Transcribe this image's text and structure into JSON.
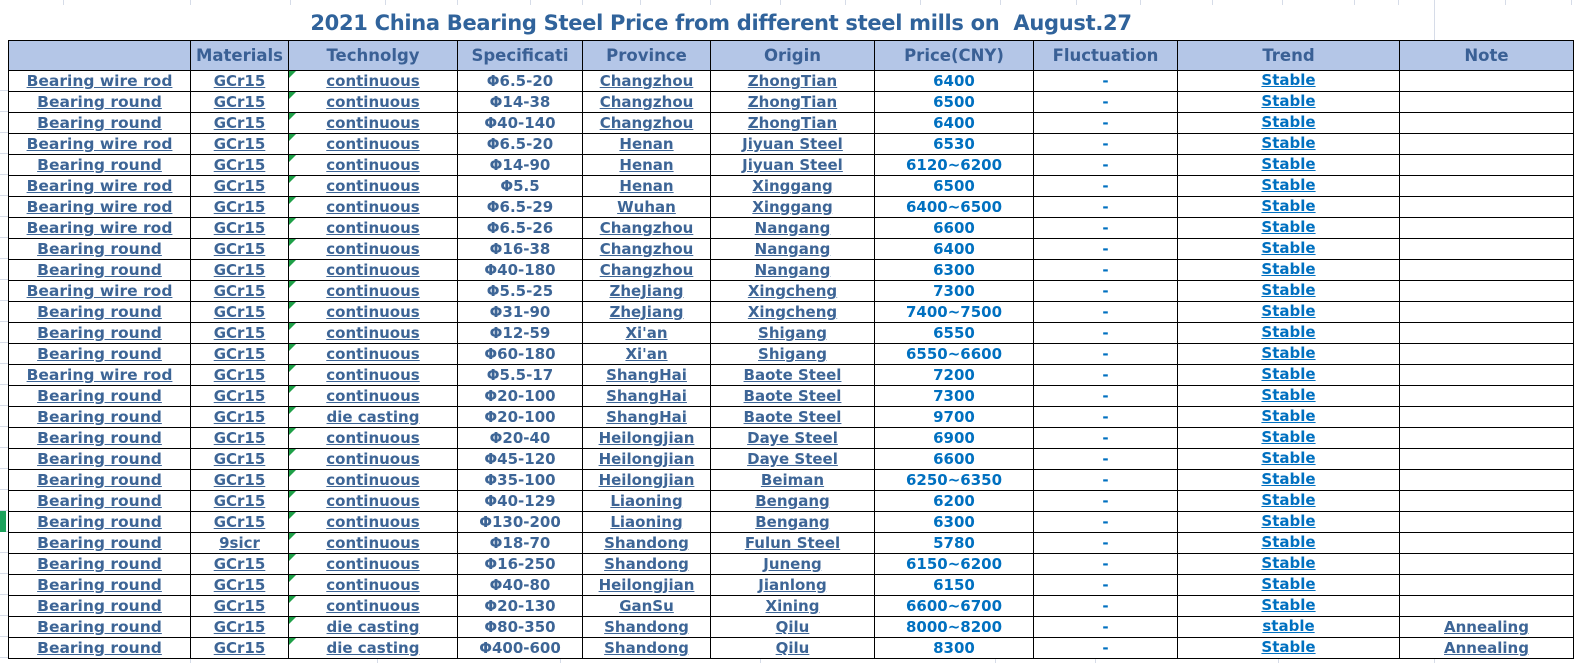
{
  "title": "2021 China Bearing Steel Price from different steel mills on  August.27",
  "colors": {
    "header_fill": "#b4c6e7",
    "header_text": "#3a6095",
    "body_steel_text": "#3d6596",
    "body_bright_blue": "#0070c0",
    "error_indicator_green": "#1fa048",
    "selection_marker_green": "#1da35c"
  },
  "table": {
    "columns": [
      {
        "key": "product",
        "label": ""
      },
      {
        "key": "materials",
        "label": "Materials"
      },
      {
        "key": "technology",
        "label": "Technolgy"
      },
      {
        "key": "specification",
        "label": "Specificati"
      },
      {
        "key": "province",
        "label": "Province"
      },
      {
        "key": "origin",
        "label": "Origin"
      },
      {
        "key": "price",
        "label": "Price(CNY)"
      },
      {
        "key": "fluctuation",
        "label": "Fluctuation"
      },
      {
        "key": "trend",
        "label": "Trend"
      },
      {
        "key": "note",
        "label": "Note"
      }
    ],
    "rows": [
      {
        "product": "Bearing wire rod",
        "materials": "GCr15",
        "technology": "continuous",
        "specification": "Φ6.5-20",
        "province": "Changzhou",
        "origin": "ZhongTian",
        "price": "6400",
        "fluctuation": "-",
        "trend": "Stable",
        "note": ""
      },
      {
        "product": "Bearing round",
        "materials": "GCr15",
        "technology": "continuous",
        "specification": "Φ14-38",
        "province": "Changzhou",
        "origin": "ZhongTian",
        "price": "6500",
        "fluctuation": "-",
        "trend": "Stable",
        "note": ""
      },
      {
        "product": "Bearing round",
        "materials": "GCr15",
        "technology": "continuous",
        "specification": "Φ40-140",
        "province": "Changzhou",
        "origin": "ZhongTian",
        "price": "6400",
        "fluctuation": "-",
        "trend": "Stable",
        "note": ""
      },
      {
        "product": "Bearing wire rod",
        "materials": "GCr15",
        "technology": "continuous",
        "specification": "Φ6.5-20",
        "province": "Henan",
        "origin": "Jiyuan Steel",
        "price": "6530",
        "fluctuation": "-",
        "trend": "Stable",
        "note": ""
      },
      {
        "product": "Bearing round",
        "materials": "GCr15",
        "technology": "continuous",
        "specification": "Φ14-90",
        "province": "Henan",
        "origin": "Jiyuan Steel",
        "price": "6120~6200",
        "fluctuation": "-",
        "trend": "Stable",
        "note": ""
      },
      {
        "product": "Bearing wire rod",
        "materials": "GCr15",
        "technology": "continuous",
        "specification": "Φ5.5",
        "province": "Henan",
        "origin": "Xinggang",
        "price": "6500",
        "fluctuation": "-",
        "trend": "Stable",
        "note": ""
      },
      {
        "product": "Bearing wire rod",
        "materials": "GCr15",
        "technology": "continuous",
        "specification": "Φ6.5-29",
        "province": "Wuhan",
        "origin": "Xinggang",
        "price": "6400~6500",
        "fluctuation": "-",
        "trend": "Stable",
        "note": ""
      },
      {
        "product": "Bearing wire rod",
        "materials": "GCr15",
        "technology": "continuous",
        "specification": "Φ6.5-26",
        "province": "Changzhou",
        "origin": "Nangang",
        "price": "6600",
        "fluctuation": "-",
        "trend": "Stable",
        "note": ""
      },
      {
        "product": "Bearing round",
        "materials": "GCr15",
        "technology": "continuous",
        "specification": "Φ16-38",
        "province": "Changzhou",
        "origin": "Nangang",
        "price": "6400",
        "fluctuation": "-",
        "trend": "Stable",
        "note": ""
      },
      {
        "product": "Bearing round",
        "materials": "GCr15",
        "technology": "continuous",
        "specification": "Φ40-180",
        "province": "Changzhou",
        "origin": "Nangang",
        "price": "6300",
        "fluctuation": "-",
        "trend": "Stable",
        "note": ""
      },
      {
        "product": "Bearing wire rod",
        "materials": "GCr15",
        "technology": "continuous",
        "specification": "Φ5.5-25",
        "province": "ZheJiang",
        "origin": "Xingcheng",
        "price": "7300",
        "fluctuation": "-",
        "trend": "Stable",
        "note": ""
      },
      {
        "product": "Bearing round",
        "materials": "GCr15",
        "technology": "continuous",
        "specification": "Φ31-90",
        "province": "ZheJiang",
        "origin": "Xingcheng",
        "price": "7400~7500",
        "fluctuation": "-",
        "trend": "Stable",
        "note": ""
      },
      {
        "product": "Bearing round",
        "materials": "GCr15",
        "technology": "continuous",
        "specification": "Φ12-59",
        "province": "Xi'an",
        "origin": "Shigang",
        "price": "6550",
        "fluctuation": "-",
        "trend": "Stable",
        "note": ""
      },
      {
        "product": "Bearing round",
        "materials": "GCr15",
        "technology": "continuous",
        "specification": "Φ60-180",
        "province": "Xi'an",
        "origin": "Shigang",
        "price": "6550~6600",
        "fluctuation": "-",
        "trend": "Stable",
        "note": ""
      },
      {
        "product": "Bearing wire rod",
        "materials": "GCr15",
        "technology": "continuous",
        "specification": "Φ5.5-17",
        "province": "ShangHai",
        "origin": "Baote Steel",
        "price": "7200",
        "fluctuation": "-",
        "trend": "Stable",
        "note": ""
      },
      {
        "product": "Bearing round",
        "materials": "GCr15",
        "technology": "continuous",
        "specification": "Φ20-100",
        "province": "ShangHai",
        "origin": "Baote Steel",
        "price": "7300",
        "fluctuation": "-",
        "trend": "Stable",
        "note": ""
      },
      {
        "product": "Bearing round",
        "materials": "GCr15",
        "technology": "die casting",
        "specification": "Φ20-100",
        "province": "ShangHai",
        "origin": "Baote Steel",
        "price": "9700",
        "fluctuation": "-",
        "trend": "Stable",
        "note": ""
      },
      {
        "product": "Bearing round",
        "materials": "GCr15",
        "technology": "continuous",
        "specification": "Φ20-40",
        "province": "Heilongjian",
        "origin": "Daye Steel",
        "price": "6900",
        "fluctuation": "-",
        "trend": "Stable",
        "note": ""
      },
      {
        "product": "Bearing round",
        "materials": "GCr15",
        "technology": "continuous",
        "specification": "Φ45-120",
        "province": "Heilongjian",
        "origin": "Daye Steel",
        "price": "6600",
        "fluctuation": "-",
        "trend": "Stable",
        "note": ""
      },
      {
        "product": "Bearing round",
        "materials": "GCr15",
        "technology": "continuous",
        "specification": "Φ35-100",
        "province": "Heilongjian",
        "origin": "Beiman",
        "price": "6250~6350",
        "fluctuation": "-",
        "trend": "Stable",
        "note": ""
      },
      {
        "product": "Bearing round",
        "materials": "GCr15",
        "technology": "continuous",
        "specification": "Φ40-129",
        "province": "Liaoning",
        "origin": "Bengang",
        "price": "6200",
        "fluctuation": "-",
        "trend": "Stable",
        "note": ""
      },
      {
        "product": "Bearing round",
        "materials": "GCr15",
        "technology": "continuous",
        "specification": "Φ130-200",
        "province": "Liaoning",
        "origin": "Bengang",
        "price": "6300",
        "fluctuation": "-",
        "trend": "Stable",
        "note": ""
      },
      {
        "product": "Bearing round",
        "materials": "9sicr",
        "technology": "continuous",
        "specification": "Φ18-70",
        "province": "Shandong",
        "origin": "Fulun Steel",
        "price": "5780",
        "fluctuation": "-",
        "trend": "Stable",
        "note": ""
      },
      {
        "product": "Bearing round",
        "materials": "GCr15",
        "technology": "continuous",
        "specification": "Φ16-250",
        "province": "Shandong",
        "origin": "Juneng",
        "price": "6150~6200",
        "fluctuation": "-",
        "trend": "Stable",
        "note": ""
      },
      {
        "product": "Bearing round",
        "materials": "GCr15",
        "technology": "continuous",
        "specification": "Φ40-80",
        "province": "Heilongjian",
        "origin": "Jianlong",
        "price": "6150",
        "fluctuation": "-",
        "trend": "Stable",
        "note": ""
      },
      {
        "product": "Bearing round",
        "materials": "GCr15",
        "technology": "continuous",
        "specification": "Φ20-130",
        "province": "GanSu",
        "origin": "Xining",
        "price": "6600~6700",
        "fluctuation": "-",
        "trend": "Stable",
        "note": ""
      },
      {
        "product": "Bearing round",
        "materials": "GCr15",
        "technology": "die casting",
        "specification": "Φ80-350",
        "province": "Shandong",
        "origin": "Qilu",
        "price": "8000~8200",
        "fluctuation": "-",
        "trend": "stable",
        "note": "Annealing"
      },
      {
        "product": "Bearing round",
        "materials": "GCr15",
        "technology": "die casting",
        "specification": "Φ400-600",
        "province": "Shandong",
        "origin": "Qilu",
        "price": "8300",
        "fluctuation": "-",
        "trend": "Stable",
        "note": "Annealing"
      }
    ]
  }
}
